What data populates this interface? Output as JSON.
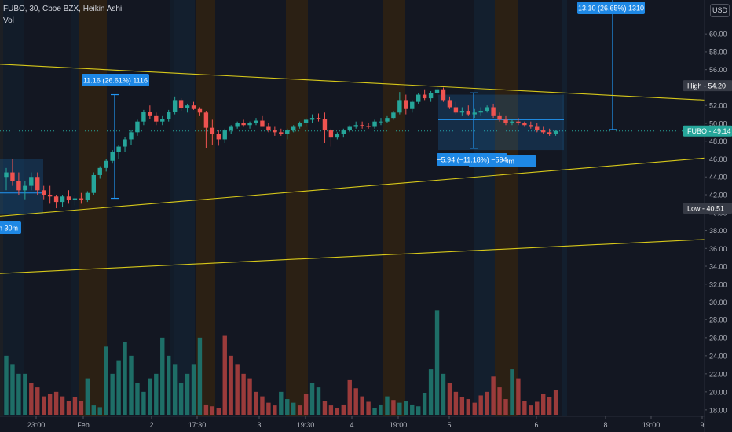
{
  "header": {
    "title": "FUBO, 30, Cboe BZX, Heikin Ashi",
    "volume_label": "Vol"
  },
  "currency_button": "USD",
  "colors": {
    "background": "#131722",
    "up": "#26a69a",
    "down": "#ef5350",
    "vol_up": "#1e6e67",
    "vol_down": "#9b3b3b",
    "trendline": "#d7c81a",
    "measure": "#2196f3",
    "session_orange": "#2b2014",
    "session_blue": "#131f2e",
    "axis_text": "#b2b5be"
  },
  "price_axis": {
    "ticks": [
      60,
      58,
      56,
      54,
      52,
      50,
      48,
      46,
      44,
      42,
      40,
      38,
      36,
      34,
      32,
      30,
      28,
      26,
      24,
      22,
      20,
      18
    ],
    "tick_labels": [
      "60.00",
      "58.00",
      "56.00",
      "54.00",
      "52.00",
      "50.00",
      "48.00",
      "46.00",
      "44.00",
      "42.00",
      "40.00",
      "38.00",
      "36.00",
      "34.00",
      "32.00",
      "30.00",
      "28.00",
      "26.00",
      "24.00",
      "22.00",
      "20.00",
      "18.00"
    ],
    "markers": [
      {
        "name": "high-marker",
        "label": "High",
        "value_text": "54.20",
        "value": 54.2,
        "color": "#363a45"
      },
      {
        "name": "last-price-marker",
        "label": "FUBO",
        "value_text": "49.14",
        "value": 49.14,
        "color": "#26a69a"
      },
      {
        "name": "low-marker",
        "label": "Low",
        "value_text": "40.51",
        "value": 40.51,
        "color": "#363a45"
      }
    ]
  },
  "time_axis": {
    "labels": [
      "23:00",
      "Feb",
      "2",
      "17:30",
      "3",
      "19:30",
      "4",
      "19:00",
      "5",
      "6",
      "8",
      "19:00",
      "9"
    ]
  },
  "measurements": [
    {
      "name": "measure-label-1",
      "text": "11.16 (26.61%) 1116"
    },
    {
      "name": "measure-label-2",
      "text": "−5.94 (−11.18%) −594"
    },
    {
      "name": "measure-label-3",
      "text": "13.10 (26.65%) 1310"
    },
    {
      "name": "duration-label-1",
      "text": "h 30m"
    },
    {
      "name": "duration-label-2",
      "text": "3h 30m"
    }
  ],
  "chart_data": {
    "type": "candlestick",
    "title": "FUBO, 30, Cboe BZX, Heikin Ashi",
    "ylim": [
      17,
      64
    ],
    "volume_ylim": [
      17,
      30
    ],
    "grid": false,
    "candles": [
      [
        44,
        45,
        42.5,
        44.5
      ],
      [
        44.5,
        46,
        43,
        43.5
      ],
      [
        43.5,
        44.5,
        42,
        42.5
      ],
      [
        42.5,
        43.5,
        41.5,
        43
      ],
      [
        43,
        44.5,
        42.5,
        44
      ],
      [
        44,
        44.5,
        42,
        42.5
      ],
      [
        42.5,
        43,
        41.5,
        42
      ],
      [
        42,
        43,
        41,
        41.8
      ],
      [
        41.8,
        42,
        40.5,
        41.2
      ],
      [
        41.2,
        42,
        40.6,
        41.8
      ],
      [
        41.8,
        42.5,
        41,
        41.4
      ],
      [
        41.4,
        42,
        40.8,
        41.6
      ],
      [
        41.6,
        42.2,
        41,
        41.4
      ],
      [
        41.4,
        42.4,
        41.2,
        42.2
      ],
      [
        42.2,
        44.5,
        42,
        44.2
      ],
      [
        44.2,
        45.2,
        43.8,
        45
      ],
      [
        45,
        46,
        44.6,
        45.8
      ],
      [
        45.8,
        47,
        45.5,
        46.8
      ],
      [
        46.8,
        47.6,
        46,
        47.4
      ],
      [
        47.4,
        48.5,
        46.8,
        48.2
      ],
      [
        48.2,
        49.2,
        47.6,
        49
      ],
      [
        49,
        50.4,
        48.6,
        50.2
      ],
      [
        50.2,
        51.5,
        49.8,
        51.3
      ],
      [
        51.3,
        52,
        50.5,
        50.8
      ],
      [
        50.8,
        51.2,
        49.8,
        50.2
      ],
      [
        50.2,
        50.8,
        49.8,
        50.5
      ],
      [
        50.5,
        51.5,
        50.2,
        51.3
      ],
      [
        51.3,
        53,
        51,
        52.6
      ],
      [
        52.6,
        52.8,
        51.4,
        51.7
      ],
      [
        51.7,
        52.2,
        51.2,
        52
      ],
      [
        52,
        52.4,
        51.5,
        51.6
      ],
      [
        51.6,
        51.8,
        50.8,
        51.2
      ],
      [
        51.2,
        51.4,
        47.2,
        49.5
      ],
      [
        49.5,
        50.4,
        47.6,
        48.8
      ],
      [
        48.8,
        49.2,
        47.5,
        48.2
      ],
      [
        48.2,
        49.4,
        47.8,
        49.2
      ],
      [
        49.2,
        49.8,
        48.8,
        49.6
      ],
      [
        49.6,
        50.2,
        49.4,
        50
      ],
      [
        50,
        50.4,
        49.6,
        49.8
      ],
      [
        49.8,
        50.2,
        49.4,
        50
      ],
      [
        50,
        50.6,
        49.8,
        50.3
      ],
      [
        50.3,
        50.8,
        49.6,
        49.6
      ],
      [
        49.6,
        50,
        49,
        49.2
      ],
      [
        49.2,
        49.6,
        48.6,
        49
      ],
      [
        49,
        49.4,
        48.6,
        48.8
      ],
      [
        48.8,
        49.4,
        48.2,
        49.2
      ],
      [
        49.2,
        49.8,
        49,
        49.6
      ],
      [
        49.6,
        50.2,
        49.4,
        50
      ],
      [
        50,
        50.6,
        49.6,
        50.4
      ],
      [
        50.4,
        51,
        50,
        50.6
      ],
      [
        50.6,
        51.1,
        50.2,
        50.5
      ],
      [
        50.5,
        51.2,
        47.8,
        49.2
      ],
      [
        49.2,
        49.4,
        47.4,
        48.4
      ],
      [
        48.4,
        49,
        48.2,
        48.8
      ],
      [
        48.8,
        49.4,
        48.4,
        49.2
      ],
      [
        49.2,
        49.8,
        49,
        49.6
      ],
      [
        49.6,
        50.2,
        49.4,
        49.8
      ],
      [
        49.8,
        50.2,
        49.4,
        49.7
      ],
      [
        49.7,
        50,
        49.4,
        49.6
      ],
      [
        49.6,
        50.4,
        49.4,
        50.2
      ],
      [
        50.2,
        50.6,
        49.8,
        50.2
      ],
      [
        50.2,
        50.8,
        50,
        50.6
      ],
      [
        50.6,
        51.4,
        50.4,
        51.2
      ],
      [
        51.2,
        53.5,
        51,
        52.6
      ],
      [
        52.6,
        53.2,
        51,
        51.6
      ],
      [
        51.6,
        52.6,
        51.2,
        52.4
      ],
      [
        52.4,
        53.4,
        52.2,
        53.2
      ],
      [
        53.2,
        53.8,
        52.6,
        52.8
      ],
      [
        52.8,
        53.6,
        52.4,
        53.4
      ],
      [
        53.4,
        54.2,
        53,
        53.8
      ],
      [
        53.8,
        54,
        52.4,
        52.6
      ],
      [
        52.6,
        53,
        51.6,
        51.8
      ],
      [
        51.8,
        52.4,
        51,
        51.2
      ],
      [
        51.2,
        51.8,
        50.8,
        51.4
      ],
      [
        51.4,
        52,
        50.8,
        51
      ],
      [
        51,
        51.6,
        50.6,
        51.2
      ],
      [
        51.2,
        51.8,
        50.8,
        51.4
      ],
      [
        51.4,
        52,
        51.2,
        51.8
      ],
      [
        51.8,
        52.2,
        50.6,
        50.8
      ],
      [
        50.8,
        51.2,
        50.2,
        50.4
      ],
      [
        50.4,
        50.8,
        49.8,
        50
      ],
      [
        50,
        50.4,
        49.8,
        50.2
      ],
      [
        50.2,
        50.6,
        49.8,
        50
      ],
      [
        50,
        50.2,
        49.6,
        49.8
      ],
      [
        49.8,
        50.2,
        49.4,
        49.6
      ],
      [
        49.6,
        50,
        49,
        49.2
      ],
      [
        49.2,
        49.6,
        48.8,
        49
      ],
      [
        49,
        49.4,
        48.6,
        48.8
      ],
      [
        48.8,
        49.2,
        48.6,
        49.14
      ]
    ],
    "volumes": [
      [
        24,
        1
      ],
      [
        23,
        1
      ],
      [
        22,
        1
      ],
      [
        22,
        1
      ],
      [
        21,
        0
      ],
      [
        20.5,
        0
      ],
      [
        19.5,
        0
      ],
      [
        19.8,
        0
      ],
      [
        20,
        0
      ],
      [
        19.5,
        0
      ],
      [
        19,
        0
      ],
      [
        19.4,
        0
      ],
      [
        19,
        0
      ],
      [
        21.5,
        1
      ],
      [
        18.5,
        1
      ],
      [
        18.3,
        1
      ],
      [
        25,
        1
      ],
      [
        22,
        1
      ],
      [
        23.5,
        1
      ],
      [
        25.5,
        1
      ],
      [
        24,
        1
      ],
      [
        21,
        1
      ],
      [
        20,
        1
      ],
      [
        21.5,
        1
      ],
      [
        22,
        1
      ],
      [
        26,
        1
      ],
      [
        24,
        1
      ],
      [
        23,
        1
      ],
      [
        21,
        1
      ],
      [
        22,
        1
      ],
      [
        23,
        1
      ],
      [
        26,
        1
      ],
      [
        18.6,
        0
      ],
      [
        18.4,
        0
      ],
      [
        18.2,
        0
      ],
      [
        26.2,
        0
      ],
      [
        24,
        0
      ],
      [
        23,
        0
      ],
      [
        22,
        0
      ],
      [
        21.5,
        0
      ],
      [
        20,
        0
      ],
      [
        19.5,
        0
      ],
      [
        18.8,
        0
      ],
      [
        18.5,
        0
      ],
      [
        20,
        1
      ],
      [
        19.2,
        1
      ],
      [
        18.8,
        1
      ],
      [
        18.5,
        0
      ],
      [
        19.8,
        0
      ],
      [
        21,
        1
      ],
      [
        20.5,
        1
      ],
      [
        19,
        0
      ],
      [
        18.5,
        0
      ],
      [
        18.2,
        0
      ],
      [
        18.6,
        0
      ],
      [
        21.3,
        0
      ],
      [
        20.4,
        0
      ],
      [
        19.5,
        0
      ],
      [
        18.9,
        0
      ],
      [
        18.2,
        1
      ],
      [
        18.6,
        1
      ],
      [
        19.5,
        1
      ],
      [
        19.1,
        0
      ],
      [
        18.8,
        1
      ],
      [
        19,
        1
      ],
      [
        18.6,
        1
      ],
      [
        18.4,
        1
      ],
      [
        19.9,
        1
      ],
      [
        22.5,
        1
      ],
      [
        29,
        1
      ],
      [
        22,
        1
      ],
      [
        21,
        0
      ],
      [
        20,
        0
      ],
      [
        19.4,
        0
      ],
      [
        19.2,
        0
      ],
      [
        18.8,
        0
      ],
      [
        19.6,
        0
      ],
      [
        20,
        0
      ],
      [
        21.7,
        0
      ],
      [
        20.5,
        0
      ],
      [
        19.2,
        0
      ],
      [
        22.5,
        1
      ],
      [
        21.5,
        0
      ],
      [
        19,
        0
      ],
      [
        18.5,
        0
      ],
      [
        18.9,
        0
      ],
      [
        19.8,
        0
      ],
      [
        19.4,
        0
      ],
      [
        20.2,
        0
      ]
    ],
    "trendlines": [
      {
        "name": "upper-resistance-line",
        "from": [
          0,
          56.6
        ],
        "to": [
          1,
          52.6
        ]
      },
      {
        "name": "lower-support-line",
        "from": [
          0,
          39.6
        ],
        "to": [
          1,
          46.1
        ]
      },
      {
        "name": "lower-channel-line",
        "from": [
          0,
          33.2
        ],
        "to": [
          1,
          37.0
        ]
      }
    ]
  }
}
